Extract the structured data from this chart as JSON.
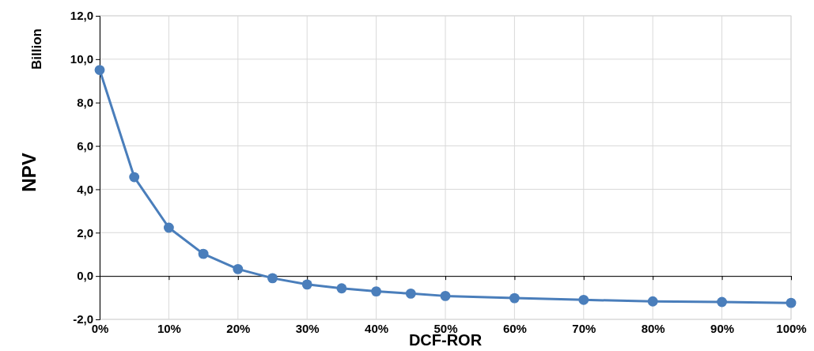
{
  "chart_data": {
    "type": "line",
    "xlabel": "DCF-ROR",
    "ylabel": "NPV",
    "annotations": [
      "Billion"
    ],
    "x": [
      0,
      5,
      10,
      15,
      20,
      25,
      30,
      35,
      40,
      45,
      50,
      60,
      70,
      80,
      90,
      100
    ],
    "series": [
      {
        "color": "#4a7ebb",
        "values": [
          9.5,
          4.56,
          2.23,
          1.02,
          0.32,
          -0.1,
          -0.39,
          -0.57,
          -0.71,
          -0.81,
          -0.92,
          -1.02,
          -1.1,
          -1.17,
          -1.2,
          -1.24
        ]
      }
    ],
    "xlim": [
      0,
      100
    ],
    "xticks": [
      {
        "value": 0,
        "label": "0%"
      },
      {
        "value": 10,
        "label": "10%"
      },
      {
        "value": 20,
        "label": "20%"
      },
      {
        "value": 30,
        "label": "30%"
      },
      {
        "value": 40,
        "label": "40%"
      },
      {
        "value": 50,
        "label": "50%"
      },
      {
        "value": 60,
        "label": "60%"
      },
      {
        "value": 70,
        "label": "70%"
      },
      {
        "value": 80,
        "label": "80%"
      },
      {
        "value": 90,
        "label": "90%"
      },
      {
        "value": 100,
        "label": "100%"
      }
    ],
    "ylim": [
      -2,
      12
    ],
    "yticks": [
      {
        "value": -2,
        "label": "-2,0"
      },
      {
        "value": 0,
        "label": "0,0"
      },
      {
        "value": 2,
        "label": "2,0"
      },
      {
        "value": 4,
        "label": "4,0"
      },
      {
        "value": 6,
        "label": "6,0"
      },
      {
        "value": 8,
        "label": "8,0"
      },
      {
        "value": 10,
        "label": "10,0"
      },
      {
        "value": 12,
        "label": "12,0"
      }
    ],
    "grid": true,
    "marker": "circle",
    "line_style": "solid"
  }
}
